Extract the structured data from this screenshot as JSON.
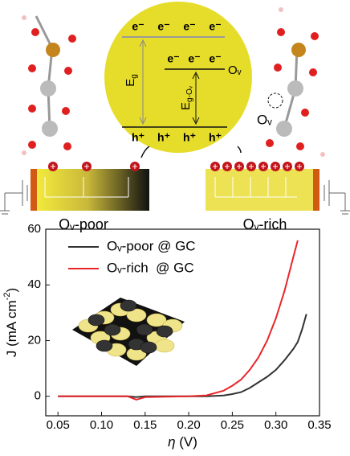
{
  "diagram": {
    "cb_electrons": [
      "e⁻",
      "e⁻",
      "e⁻",
      "e⁻"
    ],
    "defect_electrons": [
      "e⁻",
      "e⁻",
      "e⁻"
    ],
    "defect_label": "Oᵥ",
    "vb_holes": [
      "h⁺",
      "h⁺",
      "h⁺",
      "h⁺"
    ],
    "gap_label": {
      "base": "E",
      "sub": "g"
    },
    "defect_gap_label": {
      "base": "E",
      "sub": "g-Oᵥ"
    },
    "vacancy_label": "Oᵥ",
    "left_label": "Oᵥ-poor",
    "right_label": "Oᵥ-rich"
  },
  "chart_data": {
    "type": "line",
    "x": [
      0.05,
      0.1,
      0.13,
      0.14,
      0.15,
      0.2,
      0.22,
      0.24,
      0.25,
      0.26,
      0.27,
      0.28,
      0.29,
      0.3,
      0.31,
      0.32,
      0.325,
      0.33,
      0.335
    ],
    "series": [
      {
        "name": "Oᵥ-poor @ GC",
        "color": "#333333",
        "values": [
          0,
          0,
          0,
          -0.3,
          0,
          0,
          0,
          0.3,
          0.8,
          1.5,
          3,
          5,
          7,
          9.5,
          13,
          17,
          19.5,
          24,
          29.5
        ]
      },
      {
        "name": "Oᵥ-rich  @ GC",
        "color": "#e8262a",
        "values": [
          0,
          0,
          0,
          -1.2,
          -0.3,
          0,
          0.3,
          2,
          3.8,
          6,
          9.5,
          14,
          20,
          28,
          38,
          50,
          56,
          null,
          null
        ]
      }
    ],
    "x_label": {
      "symbol": "η",
      "unit": " (V)"
    },
    "y_label": {
      "base": "J (mA cm",
      "sup": "-2",
      "end": ")"
    },
    "xlim": [
      0.036,
      0.35
    ],
    "ylim": [
      -7,
      60
    ],
    "xticks": [
      {
        "value": 0.05,
        "label": "0.05"
      },
      {
        "value": 0.1,
        "label": "0.10"
      },
      {
        "value": 0.15,
        "label": "0.15"
      },
      {
        "value": 0.2,
        "label": "0.20"
      },
      {
        "value": 0.25,
        "label": "0.25"
      },
      {
        "value": 0.3,
        "label": "0.30"
      },
      {
        "value": 0.35,
        "label": "0.35"
      }
    ],
    "yticks": [
      0,
      20,
      40,
      60
    ],
    "legend": "upper-left"
  }
}
